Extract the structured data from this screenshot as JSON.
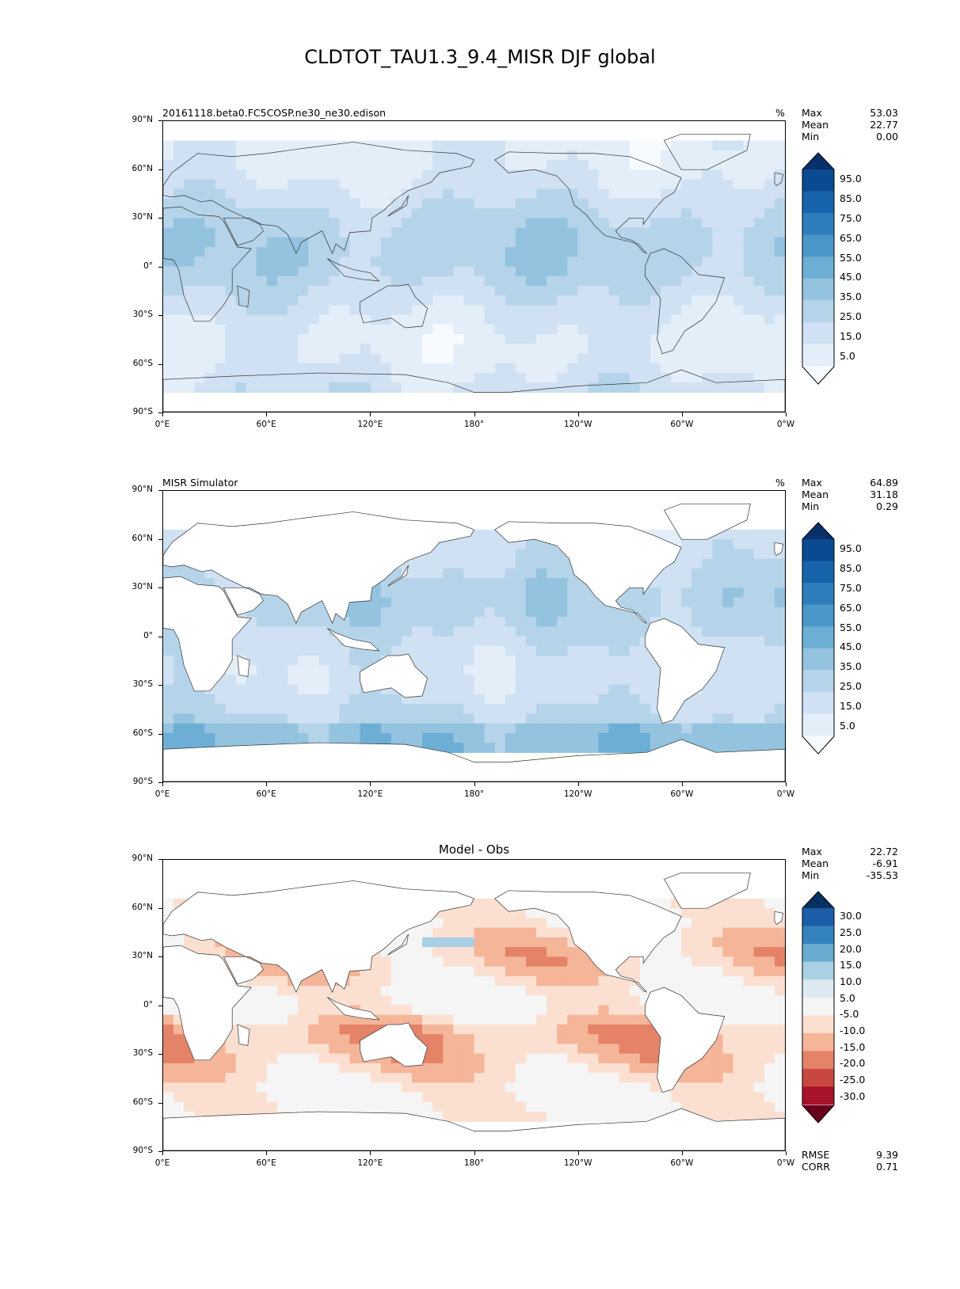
{
  "title": "CLDTOT_TAU1.3_9.4_MISR DJF global",
  "colors": {
    "blues": [
      "#f7fbff",
      "#e3eef9",
      "#cfe1f2",
      "#b5d4e9",
      "#93c3df",
      "#6daed5",
      "#4b97c9",
      "#2f7ebc",
      "#1864aa",
      "#0a4a90",
      "#08306b"
    ],
    "diverging": [
      "#67001f",
      "#a6132b",
      "#c94741",
      "#e58368",
      "#f5b599",
      "#fbe0d1",
      "#f5f5f5",
      "#dce9f2",
      "#a9d0e5",
      "#6aacd0",
      "#3583bc",
      "#1c5ea7",
      "#053061"
    ]
  },
  "chart_data": [
    {
      "type": "heatmap",
      "left_title": "20161118.beta0.FC5COSP.ne30_ne30.edison",
      "units": "%",
      "center_title": "",
      "stats": [
        {
          "label": "Max",
          "value": "53.03"
        },
        {
          "label": "Mean",
          "value": "22.77"
        },
        {
          "label": "Min",
          "value": "0.00"
        }
      ],
      "x_ticks": [
        "0°E",
        "60°E",
        "120°E",
        "180°",
        "120°W",
        "60°W",
        "0°W"
      ],
      "y_ticks": [
        "90°N",
        "60°N",
        "30°N",
        "0°",
        "30°S",
        "60°S",
        "90°S"
      ],
      "colorbar_levels": [
        "95.0",
        "85.0",
        "75.0",
        "65.0",
        "55.0",
        "45.0",
        "35.0",
        "25.0",
        "15.0",
        "5.0"
      ],
      "colorbar_kind": "blues",
      "footer": []
    },
    {
      "type": "heatmap",
      "left_title": "MISR Simulator",
      "units": "%",
      "center_title": "",
      "stats": [
        {
          "label": "Max",
          "value": "64.89"
        },
        {
          "label": "Mean",
          "value": "31.18"
        },
        {
          "label": "Min",
          "value": "0.29"
        }
      ],
      "x_ticks": [
        "0°E",
        "60°E",
        "120°E",
        "180°",
        "120°W",
        "60°W",
        "0°W"
      ],
      "y_ticks": [
        "90°N",
        "60°N",
        "30°N",
        "0°",
        "30°S",
        "60°S",
        "90°S"
      ],
      "colorbar_levels": [
        "95.0",
        "85.0",
        "75.0",
        "65.0",
        "55.0",
        "45.0",
        "35.0",
        "25.0",
        "15.0",
        "5.0"
      ],
      "colorbar_kind": "blues",
      "footer": []
    },
    {
      "type": "heatmap",
      "left_title": "",
      "units": "",
      "center_title": "Model - Obs",
      "stats": [
        {
          "label": "Max",
          "value": "22.72"
        },
        {
          "label": "Mean",
          "value": "-6.91"
        },
        {
          "label": "Min",
          "value": "-35.53"
        }
      ],
      "x_ticks": [
        "0°E",
        "60°E",
        "120°E",
        "180°",
        "120°W",
        "60°W",
        "0°W"
      ],
      "y_ticks": [
        "90°N",
        "60°N",
        "30°N",
        "0°",
        "30°S",
        "60°S",
        "90°S"
      ],
      "colorbar_levels": [
        "30.0",
        "25.0",
        "20.0",
        "15.0",
        "10.0",
        "5.0",
        "-5.0",
        "-10.0",
        "-15.0",
        "-20.0",
        "-25.0",
        "-30.0"
      ],
      "colorbar_kind": "diverging",
      "footer": [
        {
          "label": "RMSE",
          "value": "9.39"
        },
        {
          "label": "CORR",
          "value": "0.71"
        }
      ]
    }
  ]
}
